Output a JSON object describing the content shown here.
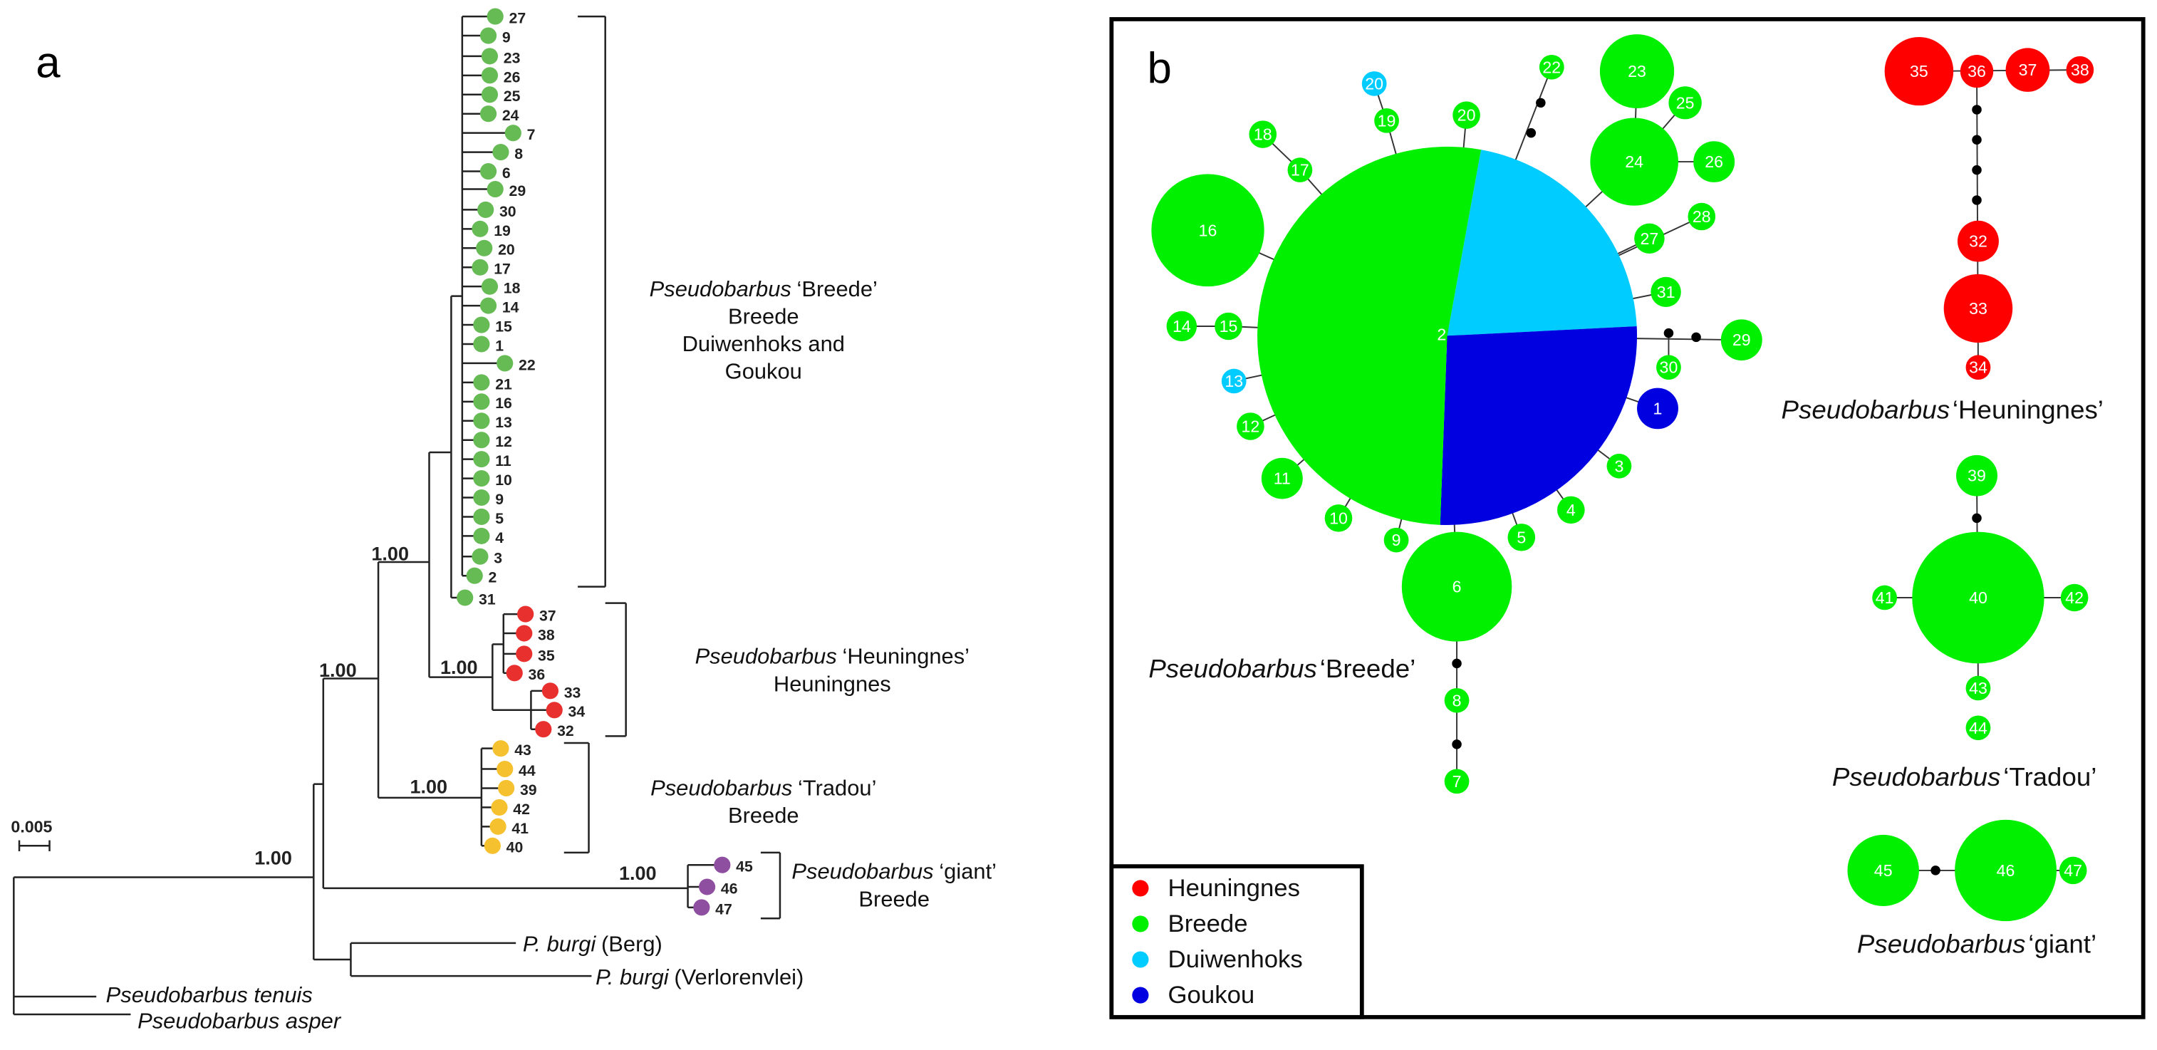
{
  "panel_a": {
    "label": "a",
    "tips": [
      "27",
      "9",
      "23",
      "26",
      "25",
      "24",
      "7",
      "8",
      "6",
      "29",
      "30",
      "19",
      "20",
      "17",
      "18",
      "14",
      "15",
      "1",
      "22",
      "21",
      "16",
      "13",
      "12",
      "11",
      "10",
      "9",
      "5",
      "4",
      "3",
      "2",
      "31",
      "37",
      "38",
      "35",
      "36",
      "33",
      "34",
      "32",
      "43",
      "44",
      "39",
      "42",
      "41",
      "40",
      "45",
      "46",
      "47"
    ],
    "supports": [
      "1.00",
      "1.00",
      "1.00",
      "1.00",
      "1.00",
      "1.00"
    ],
    "scale_label": "0.005",
    "clades": [
      {
        "genus": "Pseudobarbus",
        "name": "‘Breede’",
        "lines": [
          "Breede",
          "Duiwenhoks and",
          "Goukou"
        ]
      },
      {
        "genus": "Pseudobarbus",
        "name": "‘Heuningnes’",
        "lines": [
          "Heuningnes"
        ]
      },
      {
        "genus": "Pseudobarbus",
        "name": "‘Tradou’",
        "lines": [
          "Breede"
        ]
      },
      {
        "genus": "Pseudobarbus",
        "name": "‘giant’",
        "lines": [
          "Breede"
        ]
      }
    ],
    "outgroups": [
      {
        "species": "P. burgi",
        "locality": "(Berg)"
      },
      {
        "species": "P. burgi",
        "locality": "(Verlorenvlei)"
      },
      {
        "species": "Pseudobarbus tenuis"
      },
      {
        "species": "Pseudobarbus asper"
      }
    ]
  },
  "panel_b": {
    "label": "b",
    "center_label": "2",
    "nodes": [
      "22",
      "20",
      "19",
      "20",
      "18",
      "17",
      "16",
      "23",
      "25",
      "24",
      "26",
      "28",
      "27",
      "31",
      "29",
      "30",
      "1",
      "3",
      "4",
      "5",
      "6",
      "9",
      "10",
      "11",
      "12",
      "13",
      "14",
      "15",
      "8",
      "7",
      "35",
      "36",
      "37",
      "38",
      "32",
      "33",
      "34",
      "39",
      "40",
      "41",
      "42",
      "43",
      "44",
      "45",
      "46",
      "47"
    ],
    "groups": [
      {
        "genus": "Pseudobarbus",
        "name": "‘Breede’"
      },
      {
        "genus": "Pseudobarbus",
        "name": "‘Heuningnes’"
      },
      {
        "genus": "Pseudobarbus",
        "name": "‘Tradou’"
      },
      {
        "genus": "Pseudobarbus",
        "name": "‘giant’"
      }
    ],
    "legend": [
      {
        "label": "Heuningnes",
        "color": "#ff0000"
      },
      {
        "label": "Breede",
        "color": "#00f000"
      },
      {
        "label": "Duiwenhoks",
        "color": "#00ccff"
      },
      {
        "label": "Goukou",
        "color": "#0000e0"
      }
    ]
  }
}
